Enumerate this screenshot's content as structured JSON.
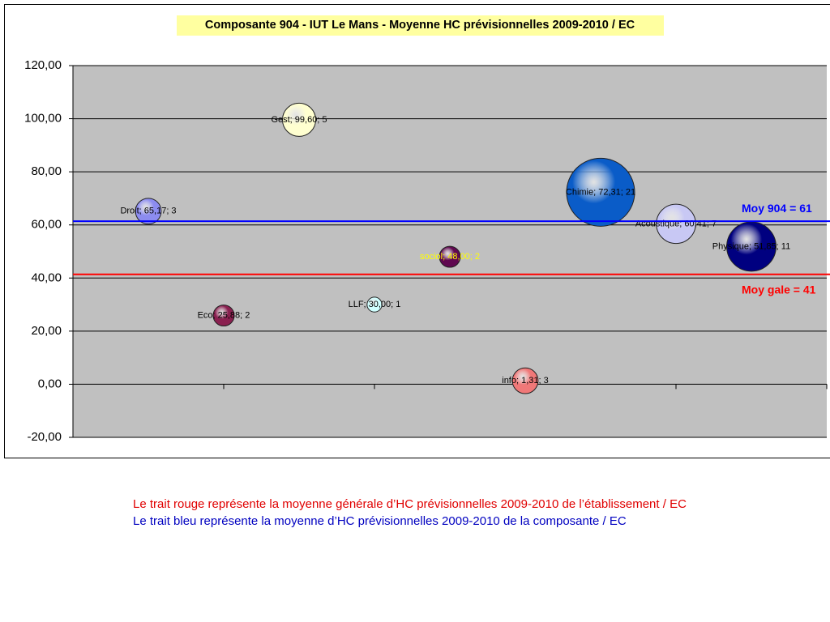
{
  "chart_data": {
    "type": "bubble",
    "title": "Composante 904 - IUT Le Mans - Moyenne HC prévisionnelles 2009-2010 / EC",
    "x": [
      1,
      2,
      3,
      4,
      5,
      6,
      7,
      8,
      9
    ],
    "values": [
      65.17,
      25.88,
      99.6,
      30.0,
      48.0,
      1.31,
      72.31,
      60.41,
      51.85
    ],
    "sizes": [
      3,
      2,
      5,
      1,
      2,
      3,
      21,
      7,
      11
    ],
    "value_labels": [
      "Droit; 65,17; 3",
      "Eco; 25,88; 2",
      "Gest; 99,60; 5",
      "LLF; 30,00; 1",
      "sociol; 48,00; 2",
      "info; 1,31; 3",
      "Chimie; 72,31; 21",
      "Acoustique; 60,41; 7",
      "Physique; 51,85; 11"
    ],
    "colors": [
      "#8c8cf0",
      "#8a2050",
      "#ffffd0",
      "#d0ffff",
      "#600850",
      "#f07878",
      "#0a5cc8",
      "#c8c8f4",
      "#000080"
    ],
    "label_colors": [
      "#000000",
      "#000000",
      "#000000",
      "#000000",
      "#ffff00",
      "#000000",
      "#000000",
      "#000000",
      "#000000"
    ],
    "xlim": [
      0,
      10
    ],
    "xticks": [
      2,
      4,
      6,
      8,
      10
    ],
    "ylim": [
      -20,
      120
    ],
    "yticks": [
      {
        "value": -20,
        "label": "-20,00"
      },
      {
        "value": 0,
        "label": "0,00"
      },
      {
        "value": 20,
        "label": "20,00"
      },
      {
        "value": 40,
        "label": "40,00"
      },
      {
        "value": 60,
        "label": "60,00"
      },
      {
        "value": 80,
        "label": "80,00"
      },
      {
        "value": 100,
        "label": "100,00"
      },
      {
        "value": 120,
        "label": "120,00"
      }
    ],
    "grid": true,
    "reference_lines": [
      {
        "value": 61.4,
        "label": "Moy 904 = 61",
        "color": "#0000ff"
      },
      {
        "value": 41.4,
        "label": "Moy gale = 41",
        "color": "#ff0000"
      }
    ]
  },
  "notes": [
    "Le trait rouge représente la moyenne générale d’HC prévisionnelles 2009-2010 de l’établissement / EC",
    "Le trait bleu représente la moyenne d’HC prévisionnelles 2009-2010 de la composante / EC"
  ]
}
